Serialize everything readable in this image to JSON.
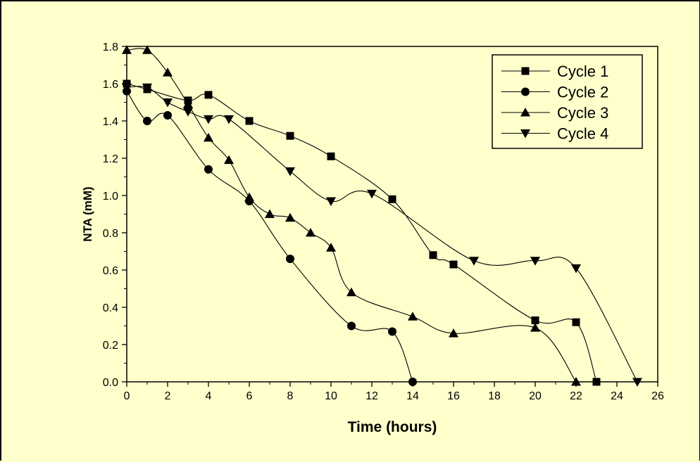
{
  "chart_data": {
    "type": "line",
    "title": "",
    "xlabel": "Time (hours)",
    "ylabel": "NTA (mM)",
    "xlim": [
      0,
      26
    ],
    "ylim": [
      0,
      1.8
    ],
    "xticks": [
      "0",
      "2",
      "4",
      "6",
      "8",
      "10",
      "12",
      "14",
      "16",
      "18",
      "20",
      "22",
      "24",
      "26"
    ],
    "yticks": [
      "0.0",
      "0.2",
      "0.4",
      "0.6",
      "0.8",
      "1.0",
      "1.2",
      "1.4",
      "1.6",
      "1.8"
    ],
    "grid": false,
    "legend_position": "top-right",
    "series": [
      {
        "name": "Cycle 1",
        "marker": "square",
        "points": [
          [
            0,
            1.6
          ],
          [
            1,
            1.57
          ],
          [
            3,
            1.51
          ],
          [
            4,
            1.54
          ],
          [
            6,
            1.4
          ],
          [
            8,
            1.32
          ],
          [
            10,
            1.21
          ],
          [
            13,
            0.98
          ],
          [
            15,
            0.68
          ],
          [
            16,
            0.63
          ],
          [
            20,
            0.33
          ],
          [
            22,
            0.32
          ],
          [
            23,
            0.0
          ]
        ]
      },
      {
        "name": "Cycle 2",
        "marker": "circle",
        "points": [
          [
            0,
            1.56
          ],
          [
            1,
            1.4
          ],
          [
            2,
            1.43
          ],
          [
            4,
            1.14
          ],
          [
            6,
            0.97
          ],
          [
            8,
            0.66
          ],
          [
            11,
            0.3
          ],
          [
            13,
            0.27
          ],
          [
            14,
            0.0
          ]
        ]
      },
      {
        "name": "Cycle 3",
        "marker": "triangle-up",
        "points": [
          [
            0,
            1.78
          ],
          [
            1,
            1.78
          ],
          [
            2,
            1.66
          ],
          [
            3,
            1.49
          ],
          [
            4,
            1.31
          ],
          [
            5,
            1.19
          ],
          [
            6,
            0.99
          ],
          [
            7,
            0.9
          ],
          [
            8,
            0.88
          ],
          [
            9,
            0.8
          ],
          [
            10,
            0.72
          ],
          [
            11,
            0.48
          ],
          [
            14,
            0.35
          ],
          [
            16,
            0.26
          ],
          [
            20,
            0.29
          ],
          [
            22,
            0.0
          ]
        ]
      },
      {
        "name": "Cycle 4",
        "marker": "triangle-down",
        "points": [
          [
            0,
            1.58
          ],
          [
            1,
            1.58
          ],
          [
            2,
            1.5
          ],
          [
            3,
            1.45
          ],
          [
            4,
            1.41
          ],
          [
            5,
            1.41
          ],
          [
            8,
            1.13
          ],
          [
            10,
            0.97
          ],
          [
            12,
            1.01
          ],
          [
            17,
            0.65
          ],
          [
            20,
            0.65
          ],
          [
            22,
            0.61
          ],
          [
            25,
            0.0
          ]
        ]
      }
    ]
  }
}
